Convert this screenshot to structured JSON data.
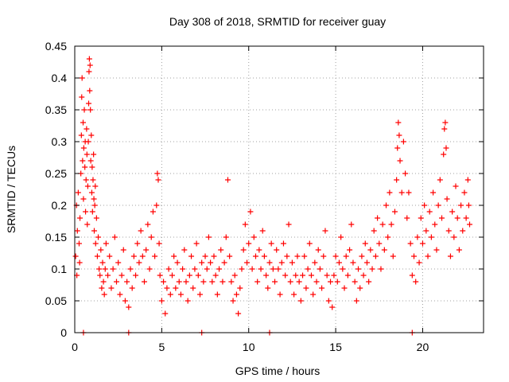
{
  "chart_data": {
    "type": "scatter",
    "title": "Day 308 of 2018, SRMTID for receiver guay",
    "xlabel": "GPS time / hours",
    "ylabel": "SRMTID / TECUs",
    "xlim": [
      0,
      23.5
    ],
    "ylim": [
      0,
      0.45
    ],
    "xticks": [
      0,
      5,
      10,
      15,
      20
    ],
    "xtick_labels": [
      "0",
      "5",
      "10",
      "15",
      "20"
    ],
    "yticks": [
      0,
      0.05,
      0.1,
      0.15,
      0.2,
      0.25,
      0.3,
      0.35,
      0.4,
      0.45
    ],
    "ytick_labels": [
      "0",
      "0.05",
      "0.1",
      "0.15",
      "0.2",
      "0.25",
      "0.3",
      "0.35",
      "0.4",
      "0.45"
    ],
    "grid": true,
    "marker": "+",
    "color": "#ff0000",
    "series": [
      {
        "name": "SRMTID",
        "points": [
          [
            0.05,
            0.12
          ],
          [
            0.1,
            0.2
          ],
          [
            0.12,
            0.09
          ],
          [
            0.15,
            0.16
          ],
          [
            0.2,
            0.22
          ],
          [
            0.25,
            0.14
          ],
          [
            0.28,
            0.11
          ],
          [
            0.3,
            0.18
          ],
          [
            0.35,
            0.25
          ],
          [
            0.38,
            0.31
          ],
          [
            0.4,
            0.37
          ],
          [
            0.42,
            0.4
          ],
          [
            0.45,
            0.27
          ],
          [
            0.48,
            0.33
          ],
          [
            0.5,
            0.21
          ],
          [
            0.52,
            0.29
          ],
          [
            0.55,
            0.35
          ],
          [
            0.58,
            0.26
          ],
          [
            0.6,
            0.3
          ],
          [
            0.62,
            0.19
          ],
          [
            0.65,
            0.24
          ],
          [
            0.68,
            0.32
          ],
          [
            0.7,
            0.28
          ],
          [
            0.72,
            0.17
          ],
          [
            0.75,
            0.23
          ],
          [
            0.78,
            0.3
          ],
          [
            0.8,
            0.36
          ],
          [
            0.82,
            0.41
          ],
          [
            0.84,
            0.43
          ],
          [
            0.86,
            0.38
          ],
          [
            0.88,
            0.42
          ],
          [
            0.9,
            0.35
          ],
          [
            0.92,
            0.27
          ],
          [
            0.95,
            0.31
          ],
          [
            0.98,
            0.22
          ],
          [
            1.0,
            0.26
          ],
          [
            1.02,
            0.19
          ],
          [
            1.05,
            0.24
          ],
          [
            1.08,
            0.28
          ],
          [
            1.1,
            0.21
          ],
          [
            1.12,
            0.16
          ],
          [
            1.15,
            0.2
          ],
          [
            1.18,
            0.23
          ],
          [
            1.2,
            0.14
          ],
          [
            1.25,
            0.18
          ],
          [
            1.3,
            0.12
          ],
          [
            1.35,
            0.15
          ],
          [
            1.4,
            0.1
          ],
          [
            1.45,
            0.09
          ],
          [
            1.5,
            0.13
          ],
          [
            1.55,
            0.07
          ],
          [
            1.6,
            0.11
          ],
          [
            1.65,
            0.08
          ],
          [
            1.7,
            0.06
          ],
          [
            1.75,
            0.1
          ],
          [
            1.8,
            0.14
          ],
          [
            1.9,
            0.09
          ],
          [
            2.0,
            0.12
          ],
          [
            2.1,
            0.07
          ],
          [
            2.2,
            0.1
          ],
          [
            2.3,
            0.15
          ],
          [
            2.4,
            0.08
          ],
          [
            2.5,
            0.11
          ],
          [
            2.6,
            0.06
          ],
          [
            2.7,
            0.09
          ],
          [
            2.8,
            0.13
          ],
          [
            2.9,
            0.05
          ],
          [
            3.0,
            0.08
          ],
          [
            3.1,
            0.04
          ],
          [
            3.2,
            0.1
          ],
          [
            3.3,
            0.07
          ],
          [
            3.4,
            0.12
          ],
          [
            3.5,
            0.09
          ],
          [
            3.6,
            0.14
          ],
          [
            3.7,
            0.11
          ],
          [
            3.8,
            0.16
          ],
          [
            3.9,
            0.12
          ],
          [
            4.0,
            0.08
          ],
          [
            4.1,
            0.13
          ],
          [
            4.2,
            0.17
          ],
          [
            4.3,
            0.1
          ],
          [
            4.4,
            0.15
          ],
          [
            4.5,
            0.19
          ],
          [
            4.6,
            0.12
          ],
          [
            4.7,
            0.2
          ],
          [
            4.75,
            0.25
          ],
          [
            4.8,
            0.24
          ],
          [
            4.85,
            0.14
          ],
          [
            4.9,
            0.09
          ],
          [
            5.0,
            0.05
          ],
          [
            5.1,
            0.08
          ],
          [
            5.2,
            0.03
          ],
          [
            5.3,
            0.07
          ],
          [
            5.4,
            0.1
          ],
          [
            5.5,
            0.06
          ],
          [
            5.6,
            0.09
          ],
          [
            5.7,
            0.12
          ],
          [
            5.8,
            0.07
          ],
          [
            5.9,
            0.11
          ],
          [
            6.0,
            0.08
          ],
          [
            6.1,
            0.06
          ],
          [
            6.2,
            0.1
          ],
          [
            6.3,
            0.13
          ],
          [
            6.4,
            0.08
          ],
          [
            6.5,
            0.05
          ],
          [
            6.6,
            0.09
          ],
          [
            6.7,
            0.12
          ],
          [
            6.8,
            0.07
          ],
          [
            6.9,
            0.1
          ],
          [
            7.0,
            0.14
          ],
          [
            7.1,
            0.09
          ],
          [
            7.2,
            0.06
          ],
          [
            7.3,
            0.11
          ],
          [
            7.4,
            0.08
          ],
          [
            7.5,
            0.12
          ],
          [
            7.6,
            0.1
          ],
          [
            7.7,
            0.15
          ],
          [
            7.8,
            0.11
          ],
          [
            7.9,
            0.08
          ],
          [
            8.0,
            0.12
          ],
          [
            8.1,
            0.09
          ],
          [
            8.2,
            0.06
          ],
          [
            8.3,
            0.1
          ],
          [
            8.4,
            0.13
          ],
          [
            8.5,
            0.08
          ],
          [
            8.6,
            0.11
          ],
          [
            8.7,
            0.15
          ],
          [
            8.8,
            0.24
          ],
          [
            8.9,
            0.12
          ],
          [
            9.0,
            0.08
          ],
          [
            9.1,
            0.05
          ],
          [
            9.2,
            0.09
          ],
          [
            9.3,
            0.06
          ],
          [
            9.4,
            0.03
          ],
          [
            9.5,
            0.07
          ],
          [
            9.6,
            0.1
          ],
          [
            9.7,
            0.13
          ],
          [
            9.8,
            0.17
          ],
          [
            9.9,
            0.11
          ],
          [
            10.0,
            0.14
          ],
          [
            10.1,
            0.19
          ],
          [
            10.2,
            0.1
          ],
          [
            10.3,
            0.15
          ],
          [
            10.4,
            0.12
          ],
          [
            10.5,
            0.08
          ],
          [
            10.6,
            0.13
          ],
          [
            10.7,
            0.1
          ],
          [
            10.8,
            0.16
          ],
          [
            10.9,
            0.12
          ],
          [
            11.0,
            0.09
          ],
          [
            11.1,
            0.07
          ],
          [
            11.2,
            0.11
          ],
          [
            11.3,
            0.14
          ],
          [
            11.4,
            0.1
          ],
          [
            11.5,
            0.08
          ],
          [
            11.6,
            0.13
          ],
          [
            11.7,
            0.1
          ],
          [
            11.8,
            0.06
          ],
          [
            11.9,
            0.11
          ],
          [
            12.0,
            0.14
          ],
          [
            12.1,
            0.09
          ],
          [
            12.2,
            0.12
          ],
          [
            12.3,
            0.17
          ],
          [
            12.4,
            0.08
          ],
          [
            12.5,
            0.11
          ],
          [
            12.6,
            0.06
          ],
          [
            12.7,
            0.09
          ],
          [
            12.8,
            0.12
          ],
          [
            12.9,
            0.08
          ],
          [
            13.0,
            0.05
          ],
          [
            13.1,
            0.09
          ],
          [
            13.2,
            0.12
          ],
          [
            13.3,
            0.07
          ],
          [
            13.4,
            0.1
          ],
          [
            13.5,
            0.14
          ],
          [
            13.6,
            0.09
          ],
          [
            13.7,
            0.06
          ],
          [
            13.8,
            0.11
          ],
          [
            13.9,
            0.08
          ],
          [
            14.0,
            0.13
          ],
          [
            14.1,
            0.1
          ],
          [
            14.2,
            0.07
          ],
          [
            14.3,
            0.12
          ],
          [
            14.4,
            0.16
          ],
          [
            14.5,
            0.09
          ],
          [
            14.6,
            0.05
          ],
          [
            14.7,
            0.08
          ],
          [
            14.8,
            0.04
          ],
          [
            14.9,
            0.09
          ],
          [
            15.0,
            0.12
          ],
          [
            15.1,
            0.08
          ],
          [
            15.2,
            0.11
          ],
          [
            15.3,
            0.15
          ],
          [
            15.4,
            0.1
          ],
          [
            15.5,
            0.07
          ],
          [
            15.6,
            0.12
          ],
          [
            15.7,
            0.09
          ],
          [
            15.8,
            0.13
          ],
          [
            15.9,
            0.17
          ],
          [
            16.0,
            0.11
          ],
          [
            16.1,
            0.08
          ],
          [
            16.2,
            0.05
          ],
          [
            16.3,
            0.1
          ],
          [
            16.4,
            0.07
          ],
          [
            16.5,
            0.12
          ],
          [
            16.6,
            0.09
          ],
          [
            16.7,
            0.14
          ],
          [
            16.8,
            0.11
          ],
          [
            16.9,
            0.08
          ],
          [
            17.0,
            0.13
          ],
          [
            17.1,
            0.1
          ],
          [
            17.2,
            0.16
          ],
          [
            17.3,
            0.12
          ],
          [
            17.4,
            0.18
          ],
          [
            17.5,
            0.14
          ],
          [
            17.6,
            0.1
          ],
          [
            17.7,
            0.17
          ],
          [
            17.8,
            0.13
          ],
          [
            17.9,
            0.2
          ],
          [
            18.0,
            0.15
          ],
          [
            18.1,
            0.22
          ],
          [
            18.2,
            0.17
          ],
          [
            18.3,
            0.12
          ],
          [
            18.4,
            0.19
          ],
          [
            18.5,
            0.24
          ],
          [
            18.55,
            0.29
          ],
          [
            18.6,
            0.33
          ],
          [
            18.65,
            0.31
          ],
          [
            18.7,
            0.27
          ],
          [
            18.8,
            0.22
          ],
          [
            18.9,
            0.3
          ],
          [
            19.0,
            0.25
          ],
          [
            19.1,
            0.18
          ],
          [
            19.2,
            0.22
          ],
          [
            19.3,
            0.14
          ],
          [
            19.4,
            0.09
          ],
          [
            19.5,
            0.12
          ],
          [
            19.6,
            0.08
          ],
          [
            19.7,
            0.15
          ],
          [
            19.8,
            0.11
          ],
          [
            19.9,
            0.18
          ],
          [
            20.0,
            0.14
          ],
          [
            20.1,
            0.2
          ],
          [
            20.2,
            0.16
          ],
          [
            20.3,
            0.12
          ],
          [
            20.4,
            0.19
          ],
          [
            20.5,
            0.15
          ],
          [
            20.6,
            0.22
          ],
          [
            20.7,
            0.17
          ],
          [
            20.8,
            0.13
          ],
          [
            20.9,
            0.2
          ],
          [
            21.0,
            0.24
          ],
          [
            21.1,
            0.18
          ],
          [
            21.2,
            0.28
          ],
          [
            21.25,
            0.32
          ],
          [
            21.3,
            0.33
          ],
          [
            21.35,
            0.29
          ],
          [
            21.4,
            0.21
          ],
          [
            21.5,
            0.16
          ],
          [
            21.6,
            0.12
          ],
          [
            21.7,
            0.19
          ],
          [
            21.8,
            0.15
          ],
          [
            21.9,
            0.23
          ],
          [
            22.0,
            0.18
          ],
          [
            22.1,
            0.13
          ],
          [
            22.2,
            0.2
          ],
          [
            22.3,
            0.16
          ],
          [
            22.4,
            0.22
          ],
          [
            22.5,
            0.18
          ],
          [
            22.6,
            0.24
          ],
          [
            22.65,
            0.2
          ],
          [
            22.7,
            0.17
          ],
          [
            0.5,
            0.0
          ],
          [
            3.1,
            0.0
          ],
          [
            7.3,
            0.0
          ],
          [
            11.2,
            0.0
          ],
          [
            19.4,
            0.0
          ]
        ]
      }
    ]
  }
}
